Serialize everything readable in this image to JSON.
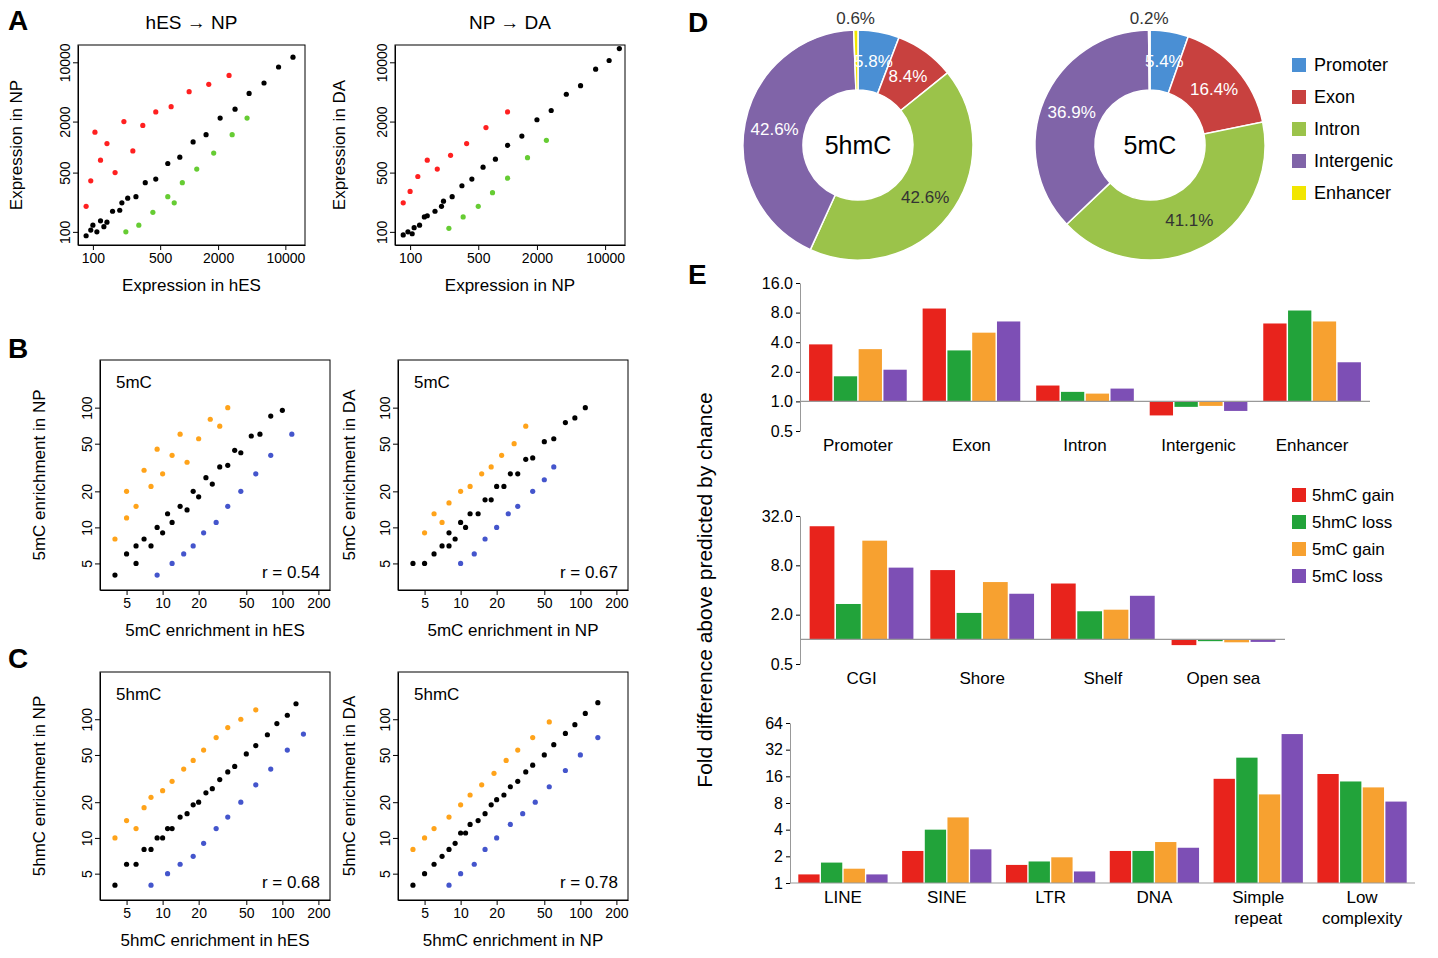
{
  "chart_data": [
    {
      "type": "scatter",
      "panel": "A",
      "title": "hES → NP",
      "x_label": "Expression in hES",
      "y_label": "Expression in NP",
      "log": true,
      "xlim": [
        70,
        16000
      ],
      "ylim": [
        70,
        16000
      ],
      "xticks": [
        100,
        500,
        2000,
        10000
      ],
      "yticks": [
        100,
        500,
        2000,
        10000
      ],
      "series": [
        {
          "color": "#000000",
          "x": [
            85,
            95,
            110,
            120,
            140,
            160,
            190,
            230,
            280,
            350,
            450,
            600,
            800,
            1100,
            1500,
            2100,
            3000,
            4200,
            6000,
            8500,
            12000,
            100,
            130,
            200
          ],
          "values": [
            90,
            105,
            100,
            135,
            130,
            175,
            180,
            250,
            260,
            380,
            420,
            640,
            760,
            1150,
            1400,
            2200,
            2800,
            4300,
            5700,
            8800,
            11500,
            120,
            115,
            220
          ]
        },
        {
          "color": "#ff2020",
          "x": [
            85,
            95,
            105,
            120,
            140,
            170,
            210,
            260,
            330,
            450,
            650,
            1000,
            1600,
            2600
          ],
          "values": [
            200,
            400,
            1500,
            700,
            1100,
            500,
            2000,
            900,
            1800,
            2600,
            3000,
            4500,
            5500,
            7000
          ]
        },
        {
          "color": "#66cc33",
          "x": [
            220,
            300,
            420,
            600,
            850,
            1200,
            1800,
            2800,
            4000,
            700
          ],
          "values": [
            100,
            120,
            170,
            260,
            380,
            550,
            850,
            1400,
            2200,
            220
          ]
        }
      ]
    },
    {
      "type": "scatter",
      "title": "NP → DA",
      "x_label": "Expression in NP",
      "y_label": "Expression in DA",
      "log": true,
      "xlim": [
        70,
        16000
      ],
      "ylim": [
        70,
        16000
      ],
      "xticks": [
        100,
        500,
        2000,
        10000
      ],
      "yticks": [
        100,
        500,
        2000,
        10000
      ],
      "series": [
        {
          "color": "#000000",
          "x": [
            85,
            95,
            110,
            125,
            150,
            180,
            220,
            270,
            340,
            430,
            560,
            750,
            1000,
            1400,
            2000,
            2800,
            4000,
            5600,
            8000,
            11000,
            14000,
            105,
            140,
            210
          ],
          "values": [
            92,
            100,
            112,
            120,
            155,
            175,
            230,
            260,
            350,
            420,
            580,
            720,
            1050,
            1350,
            2100,
            2700,
            4200,
            5300,
            8300,
            10500,
            14500,
            95,
            150,
            200
          ]
        },
        {
          "color": "#ff2020",
          "x": [
            85,
            100,
            120,
            150,
            190,
            260,
            380,
            600,
            1000
          ],
          "values": [
            220,
            300,
            450,
            700,
            550,
            800,
            1100,
            1700,
            2600
          ]
        },
        {
          "color": "#66cc33",
          "x": [
            250,
            350,
            500,
            700,
            1000,
            1600,
            2500
          ],
          "values": [
            110,
            150,
            200,
            290,
            430,
            750,
            1200
          ]
        }
      ]
    },
    {
      "type": "scatter",
      "panel": "B",
      "annotations": [
        "5mC",
        "r = 0.54"
      ],
      "x_label": "5mC enrichment in hES",
      "y_label": "5mC enrichment in NP",
      "log": true,
      "xlim": [
        3,
        250
      ],
      "ylim": [
        3,
        250
      ],
      "xticks": [
        5,
        10,
        20,
        50,
        100,
        200
      ],
      "yticks": [
        5,
        10,
        20,
        50,
        100
      ],
      "series": [
        {
          "color": "#000000",
          "x": [
            4,
            5,
            6,
            7,
            8,
            9,
            10,
            11,
            12,
            14,
            16,
            18,
            20,
            23,
            26,
            30,
            35,
            40,
            45,
            55,
            65,
            80,
            100,
            6
          ],
          "values": [
            4,
            6,
            5,
            8,
            7,
            10,
            9,
            13,
            11,
            15,
            14,
            20,
            18,
            26,
            23,
            32,
            33,
            44,
            42,
            58,
            60,
            85,
            95,
            7
          ]
        },
        {
          "color": "#ffa31a",
          "x": [
            4,
            5,
            5,
            6,
            7,
            8,
            9,
            10,
            12,
            14,
            16,
            20,
            25,
            30,
            35
          ],
          "values": [
            8,
            12,
            20,
            15,
            30,
            22,
            45,
            28,
            40,
            60,
            35,
            55,
            80,
            70,
            100
          ]
        },
        {
          "color": "#4455cc",
          "x": [
            9,
            12,
            15,
            18,
            22,
            28,
            35,
            45,
            60,
            80,
            120
          ],
          "values": [
            4,
            5,
            6,
            7,
            9,
            11,
            15,
            20,
            28,
            40,
            60
          ]
        }
      ]
    },
    {
      "type": "scatter",
      "annotations": [
        "5mC",
        "r = 0.67"
      ],
      "x_label": "5mC enrichment in NP",
      "y_label": "5mC enrichment in DA",
      "log": true,
      "xlim": [
        3,
        250
      ],
      "ylim": [
        3,
        250
      ],
      "xticks": [
        5,
        10,
        20,
        50,
        100,
        200
      ],
      "yticks": [
        5,
        10,
        20,
        50,
        100
      ],
      "series": [
        {
          "color": "#000000",
          "x": [
            4,
            5,
            6,
            7,
            8,
            9,
            10,
            11,
            12,
            14,
            16,
            18,
            20,
            23,
            26,
            30,
            35,
            40,
            50,
            60,
            75,
            90,
            110,
            8
          ],
          "values": [
            5,
            5,
            6,
            7,
            9,
            8,
            11,
            10,
            13,
            13,
            17,
            17,
            22,
            22,
            28,
            28,
            37,
            38,
            52,
            55,
            75,
            82,
            100,
            7
          ]
        },
        {
          "color": "#ffa31a",
          "x": [
            5,
            6,
            7,
            8,
            10,
            12,
            15,
            18,
            22,
            28,
            35
          ],
          "values": [
            9,
            13,
            11,
            16,
            20,
            22,
            28,
            32,
            40,
            50,
            70
          ]
        },
        {
          "color": "#4455cc",
          "x": [
            10,
            13,
            16,
            20,
            25,
            30,
            40,
            50,
            60
          ],
          "values": [
            5,
            6,
            8,
            10,
            13,
            15,
            20,
            25,
            32
          ]
        }
      ]
    },
    {
      "type": "scatter",
      "panel": "C",
      "annotations": [
        "5hmC",
        "r = 0.68"
      ],
      "x_label": "5hmC enrichment in hES",
      "y_label": "5hmC enrichment in NP",
      "log": true,
      "xlim": [
        3,
        250
      ],
      "ylim": [
        3,
        250
      ],
      "xticks": [
        5,
        10,
        20,
        50,
        100,
        200
      ],
      "yticks": [
        5,
        10,
        20,
        50,
        100
      ],
      "series": [
        {
          "color": "#000000",
          "x": [
            4,
            5,
            6,
            7,
            8,
            9,
            10,
            11,
            12,
            14,
            16,
            18,
            20,
            23,
            26,
            30,
            35,
            40,
            50,
            60,
            75,
            90,
            110,
            130
          ],
          "values": [
            4,
            6,
            6,
            8,
            8,
            10,
            10,
            12,
            12,
            15,
            16,
            19,
            20,
            24,
            26,
            31,
            36,
            40,
            51,
            60,
            74,
            92,
            108,
            135
          ]
        },
        {
          "color": "#ffa31a",
          "x": [
            4,
            5,
            6,
            7,
            8,
            10,
            12,
            15,
            18,
            22,
            28,
            35,
            45,
            60
          ],
          "values": [
            10,
            14,
            12,
            18,
            22,
            25,
            30,
            38,
            45,
            55,
            70,
            85,
            100,
            120
          ]
        },
        {
          "color": "#4455cc",
          "x": [
            8,
            11,
            14,
            18,
            22,
            28,
            35,
            45,
            60,
            80,
            110,
            150
          ],
          "values": [
            4,
            5,
            6,
            7,
            9,
            12,
            15,
            20,
            28,
            38,
            55,
            75
          ]
        }
      ]
    },
    {
      "type": "scatter",
      "annotations": [
        "5hmC",
        "r = 0.78"
      ],
      "x_label": "5hmC enrichment in NP",
      "y_label": "5hmC enrichment in DA",
      "log": true,
      "xlim": [
        3,
        250
      ],
      "ylim": [
        3,
        250
      ],
      "xticks": [
        5,
        10,
        20,
        50,
        100,
        200
      ],
      "yticks": [
        5,
        10,
        20,
        50,
        100
      ],
      "series": [
        {
          "color": "#000000",
          "x": [
            4,
            5,
            6,
            7,
            8,
            9,
            10,
            11,
            12,
            14,
            16,
            18,
            20,
            23,
            26,
            30,
            35,
            40,
            50,
            60,
            75,
            90,
            110,
            140
          ],
          "values": [
            4,
            5,
            6,
            7,
            8,
            9,
            11,
            11,
            13,
            14,
            16,
            19,
            21,
            23,
            27,
            30,
            36,
            41,
            50,
            61,
            76,
            90,
            112,
            138
          ]
        },
        {
          "color": "#ffa31a",
          "x": [
            4,
            5,
            6,
            8,
            10,
            12,
            15,
            19,
            24,
            30,
            40,
            55
          ],
          "values": [
            8,
            10,
            12,
            15,
            19,
            23,
            28,
            35,
            45,
            55,
            70,
            95
          ]
        },
        {
          "color": "#4455cc",
          "x": [
            8,
            10,
            13,
            16,
            20,
            26,
            33,
            42,
            55,
            75,
            100,
            140
          ],
          "values": [
            4,
            5,
            6,
            8,
            10,
            13,
            16,
            20,
            27,
            37,
            50,
            70
          ]
        }
      ]
    },
    {
      "type": "pie",
      "panel": "D",
      "center_label": "5hmC",
      "data_labels": true,
      "categories": [
        "Promoter",
        "Exon",
        "Intron",
        "Intergenic",
        "Enhancer"
      ],
      "values": [
        5.8,
        8.4,
        42.6,
        42.6,
        0.6
      ],
      "value_labels": [
        "5.8%",
        "8.4%",
        "42.6%",
        "42.6%",
        "0.6%"
      ],
      "colors": [
        "#4a8fd4",
        "#c8413f",
        "#9bc34a",
        "#8064a8",
        "#f2e600"
      ]
    },
    {
      "type": "pie",
      "center_label": "5mC",
      "data_labels": true,
      "legend": "right",
      "categories": [
        "Promoter",
        "Exon",
        "Intron",
        "Intergenic",
        "Enhancer"
      ],
      "values": [
        5.4,
        16.4,
        41.1,
        36.9,
        0.2
      ],
      "value_labels": [
        "5.4%",
        "16.4%",
        "41.1%",
        "36.9%",
        "0.2%"
      ],
      "colors": [
        "#4a8fd4",
        "#c8413f",
        "#9bc34a",
        "#8064a8",
        "#f2e600"
      ]
    },
    {
      "type": "bar",
      "panel": "E",
      "log": "y",
      "categories": [
        "Promoter",
        "Exon",
        "Intron",
        "Intergenic",
        "Enhancer"
      ],
      "ylim": [
        0.5,
        16
      ],
      "yticks": [
        0.5,
        {
          "value": 1,
          "label": "1.0"
        },
        {
          "value": 2,
          "label": "2.0"
        },
        {
          "value": 4,
          "label": "4.0"
        },
        {
          "value": 8,
          "label": "8.0"
        },
        {
          "value": 16,
          "label": "16.0"
        }
      ],
      "series": [
        {
          "color": "#e8231c",
          "values": [
            3.8,
            8.8,
            1.45,
            0.72,
            6.2
          ]
        },
        {
          "color": "#22a33a",
          "values": [
            1.8,
            3.3,
            1.25,
            0.88,
            8.4
          ]
        },
        {
          "color": "#f7a130",
          "values": [
            3.4,
            5.0,
            1.2,
            0.9,
            6.5
          ]
        },
        {
          "color": "#7d4fb5",
          "values": [
            2.1,
            6.5,
            1.35,
            0.8,
            2.5
          ]
        }
      ]
    },
    {
      "type": "bar",
      "log": "y",
      "legend": "right",
      "y_label": "Fold difference above predicted by chance",
      "categories": [
        "CGI",
        "Shore",
        "Shelf",
        "Open sea"
      ],
      "ylim": [
        0.5,
        32
      ],
      "yticks": [
        0.5,
        {
          "value": 2,
          "label": "2.0"
        },
        {
          "value": 8,
          "label": "8.0"
        },
        {
          "value": 32,
          "label": "32.0"
        }
      ],
      "series": [
        {
          "name": "5hmC gain",
          "color": "#e8231c",
          "values": [
            24,
            7.0,
            4.8,
            0.85
          ]
        },
        {
          "name": "5hmC loss",
          "color": "#22a33a",
          "values": [
            2.7,
            2.1,
            2.2,
            0.95
          ]
        },
        {
          "name": "5mC gain",
          "color": "#f7a130",
          "values": [
            16,
            5.0,
            2.3,
            0.92
          ]
        },
        {
          "name": "5mC loss",
          "color": "#7d4fb5",
          "values": [
            7.5,
            3.6,
            3.4,
            0.93
          ]
        }
      ]
    },
    {
      "type": "bar",
      "log": "y",
      "categories": [
        "LINE",
        "SINE",
        "LTR",
        "DNA",
        "Simple repeat",
        "Low complexity"
      ],
      "ylim": [
        1,
        64
      ],
      "yticks": [
        1,
        2,
        4,
        8,
        16,
        32,
        64
      ],
      "series": [
        {
          "color": "#e8231c",
          "values": [
            1.25,
            2.3,
            1.6,
            2.3,
            15,
            17
          ]
        },
        {
          "color": "#22a33a",
          "values": [
            1.7,
            4.0,
            1.75,
            2.3,
            26,
            14
          ]
        },
        {
          "color": "#f7a130",
          "values": [
            1.45,
            5.5,
            1.95,
            2.9,
            10,
            12
          ]
        },
        {
          "color": "#7d4fb5",
          "values": [
            1.25,
            2.4,
            1.35,
            2.5,
            48,
            8.3
          ]
        }
      ]
    }
  ]
}
